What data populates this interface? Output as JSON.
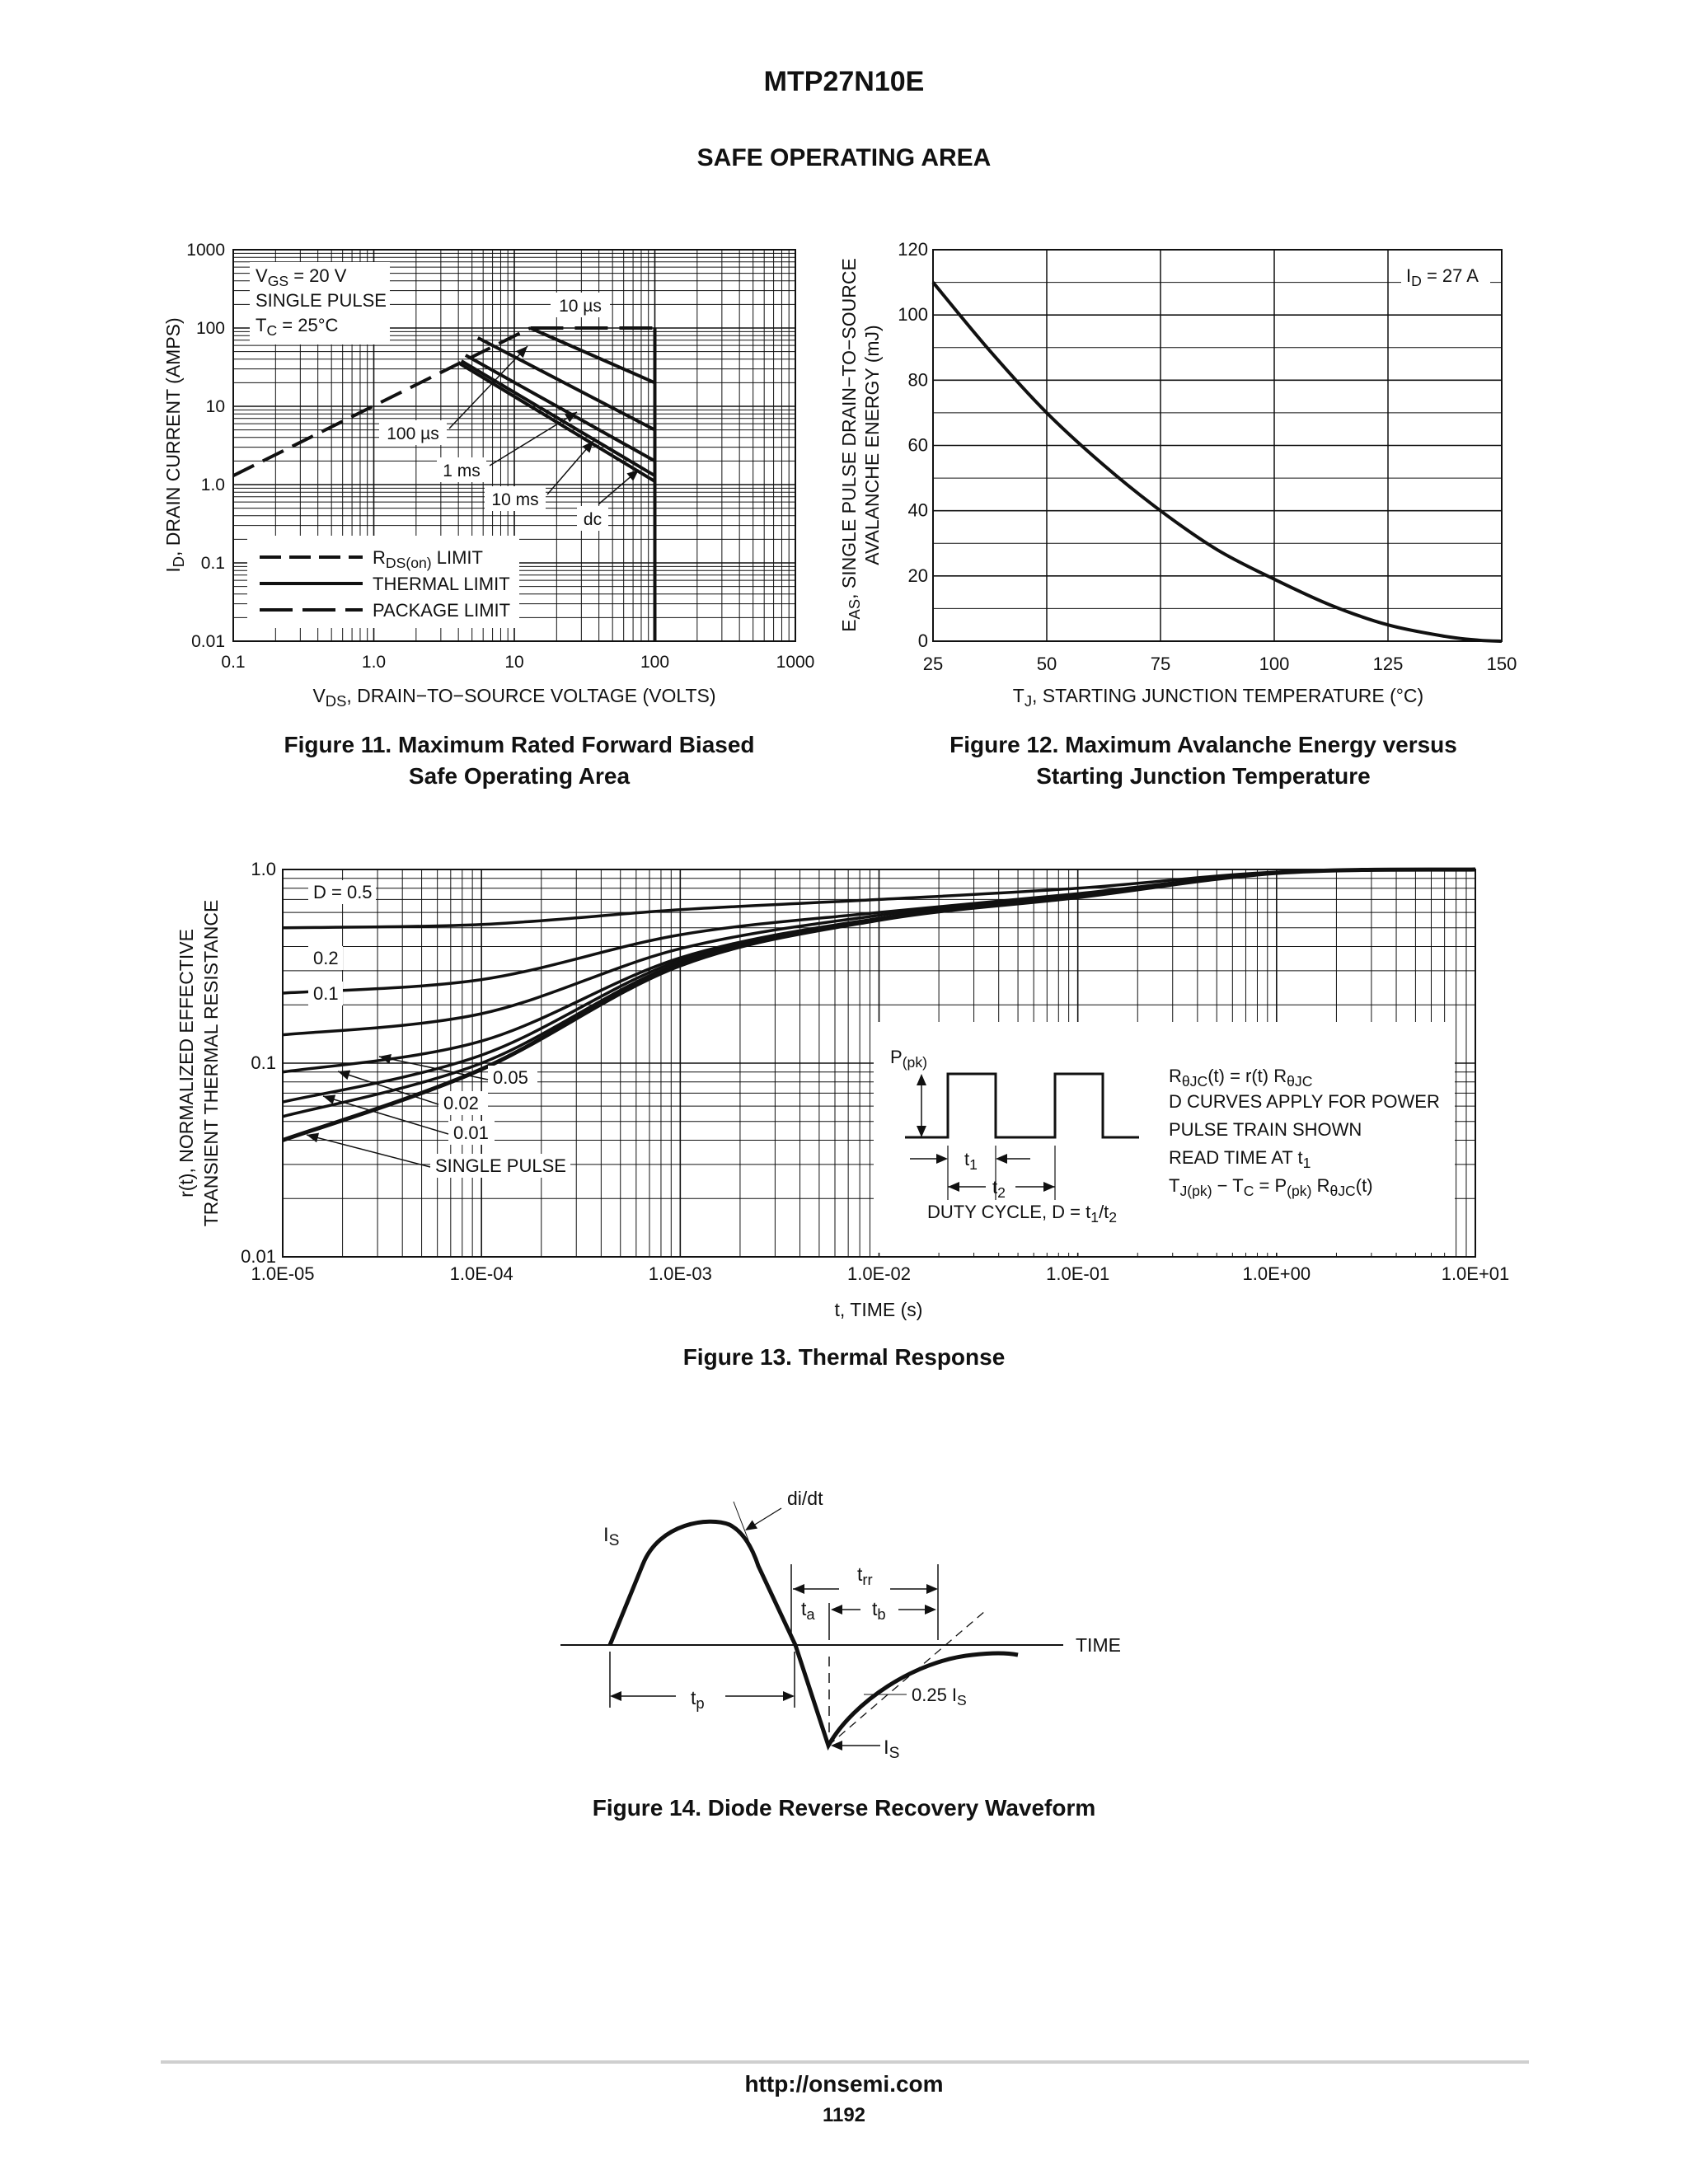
{
  "header": {
    "part_number": "MTP27N10E",
    "section_title": "SAFE OPERATING AREA"
  },
  "footer": {
    "url": "http://onsemi.com",
    "page": "1192"
  },
  "captions": {
    "fig11_line1": "Figure 11. Maximum Rated Forward Biased",
    "fig11_line2": "Safe Operating Area",
    "fig12_line1": "Figure 12. Maximum Avalanche Energy versus",
    "fig12_line2": "Starting Junction Temperature",
    "fig13": "Figure 13. Thermal Response",
    "fig14": "Figure 14. Diode Reverse Recovery Waveform"
  },
  "chart_data": [
    {
      "id": "fig11",
      "type": "line",
      "xscale": "log",
      "yscale": "log",
      "xlim": [
        0.1,
        1000
      ],
      "ylim": [
        0.01,
        1000
      ],
      "xticks": [
        "0.1",
        "1.0",
        "10",
        "100",
        "1000"
      ],
      "yticks": [
        "0.01",
        "0.1",
        "1.0",
        "10",
        "100",
        "1000"
      ],
      "xlabel": "V_DS, DRAIN-TO-SOURCE VOLTAGE (VOLTS)",
      "ylabel": "I_D, DRAIN CURRENT (AMPS)",
      "conditions": [
        "V_GS = 20 V",
        "SINGLE PULSE",
        "T_C = 25°C"
      ],
      "legend": [
        "R_DS(on) LIMIT",
        "THERMAL LIMIT",
        "PACKAGE LIMIT"
      ],
      "series": [
        {
          "name": "R_DS(on) LIMIT",
          "style": "dashed",
          "x": [
            0.1,
            13
          ],
          "y": [
            1.3,
            100
          ]
        },
        {
          "name": "PACKAGE LIMIT",
          "style": "dashed",
          "x": [
            13,
            100
          ],
          "y": [
            100,
            100
          ]
        },
        {
          "name": "10 µs",
          "style": "solid",
          "x": [
            13,
            100
          ],
          "y": [
            100,
            20
          ]
        },
        {
          "name": "100 µs",
          "style": "solid",
          "x": [
            5.5,
            100
          ],
          "y": [
            75,
            5
          ]
        },
        {
          "name": "1 ms",
          "style": "solid",
          "x": [
            4.5,
            100
          ],
          "y": [
            45,
            2
          ]
        },
        {
          "name": "10 ms",
          "style": "solid",
          "x": [
            4.2,
            100
          ],
          "y": [
            38,
            1.3
          ]
        },
        {
          "name": "dc",
          "style": "solid",
          "x": [
            4.0,
            100
          ],
          "y": [
            36,
            1.1
          ]
        },
        {
          "name": "V_DSS limit",
          "style": "solid",
          "x": [
            100,
            100
          ],
          "y": [
            100,
            0.01
          ]
        }
      ],
      "annotations": [
        "10 µs",
        "100 µs",
        "1 ms",
        "10 ms",
        "dc"
      ]
    },
    {
      "id": "fig12",
      "type": "line",
      "xlim": [
        25,
        150
      ],
      "ylim": [
        0,
        120
      ],
      "xticks": [
        "25",
        "50",
        "75",
        "100",
        "125",
        "150"
      ],
      "yticks": [
        "0",
        "20",
        "40",
        "60",
        "80",
        "100",
        "120"
      ],
      "xlabel": "T_J, STARTING JUNCTION TEMPERATURE (°C)",
      "ylabel_line1": "E_AS, SINGLE PULSE DRAIN-TO-SOURCE",
      "ylabel_line2": "AVALANCHE ENERGY (mJ)",
      "annotation": "I_D = 27 A",
      "series": [
        {
          "name": "I_D = 27 A",
          "x": [
            25,
            37.5,
            50,
            62.5,
            75,
            87.5,
            100,
            112.5,
            125,
            137.5,
            145,
            150
          ],
          "y": [
            110,
            89,
            70,
            54,
            40,
            28,
            19,
            11,
            5,
            1.5,
            0.3,
            0
          ]
        }
      ]
    },
    {
      "id": "fig13",
      "type": "line",
      "xscale": "log",
      "yscale": "log",
      "xlim": [
        1e-05,
        10
      ],
      "ylim": [
        0.01,
        1.0
      ],
      "xticks": [
        "1.0E-05",
        "1.0E-04",
        "1.0E-03",
        "1.0E-02",
        "1.0E-01",
        "1.0E+00",
        "1.0E+01"
      ],
      "yticks": [
        "0.01",
        "0.1",
        "1.0"
      ],
      "xlabel": "t, TIME (s)",
      "ylabel_line1": "r(t), NORMALIZED EFFECTIVE",
      "ylabel_line2": "TRANSIENT THERMAL RESISTANCE",
      "series": [
        {
          "name": "D = 0.5",
          "x": [
            1e-05,
            0.0001,
            0.001,
            0.01,
            0.1,
            1,
            10
          ],
          "y": [
            0.5,
            0.52,
            0.62,
            0.7,
            0.8,
            0.97,
            1.0
          ]
        },
        {
          "name": "0.2",
          "x": [
            1e-05,
            0.0001,
            0.001,
            0.01,
            0.1,
            1,
            10
          ],
          "y": [
            0.23,
            0.27,
            0.46,
            0.6,
            0.75,
            0.96,
            1.0
          ]
        },
        {
          "name": "0.1",
          "x": [
            1e-05,
            0.0001,
            0.001,
            0.01,
            0.1,
            1,
            10
          ],
          "y": [
            0.14,
            0.18,
            0.39,
            0.58,
            0.74,
            0.96,
            1.0
          ]
        },
        {
          "name": "0.05",
          "x": [
            1e-05,
            0.0001,
            0.001,
            0.01,
            0.1,
            1,
            10
          ],
          "y": [
            0.09,
            0.13,
            0.35,
            0.56,
            0.73,
            0.96,
            1.0
          ]
        },
        {
          "name": "0.02",
          "x": [
            1e-05,
            0.0001,
            0.001,
            0.01,
            0.1,
            1,
            10
          ],
          "y": [
            0.063,
            0.11,
            0.34,
            0.55,
            0.73,
            0.96,
            1.0
          ]
        },
        {
          "name": "0.01",
          "x": [
            1e-05,
            0.0001,
            0.001,
            0.01,
            0.1,
            1,
            10
          ],
          "y": [
            0.053,
            0.1,
            0.33,
            0.55,
            0.73,
            0.96,
            1.0
          ]
        },
        {
          "name": "SINGLE PULSE",
          "x": [
            1e-05,
            0.0001,
            0.001,
            0.01,
            0.1,
            1,
            10
          ],
          "y": [
            0.04,
            0.093,
            0.32,
            0.55,
            0.72,
            0.96,
            1.0
          ]
        }
      ],
      "labels": [
        "D = 0.5",
        "0.2",
        "0.1",
        "0.05",
        "0.02",
        "0.01",
        "SINGLE PULSE"
      ],
      "inset": {
        "p_pk": "P(pk)",
        "t1": "t1",
        "t2": "t2",
        "duty_cycle": "DUTY CYCLE, D = t1/t2",
        "notes": [
          "RθJC(t) = r(t) RθJC",
          "D CURVES APPLY FOR POWER",
          "PULSE TRAIN SHOWN",
          "READ TIME AT t1",
          "TJ(pk) − TC = P(pk) RθJC(t)"
        ]
      }
    },
    {
      "id": "fig14",
      "type": "diagram",
      "labels": {
        "di_dt": "di/dt",
        "is_top": "IS",
        "trr": "trr",
        "ta": "ta",
        "tb": "tb",
        "time": "TIME",
        "tp": "tp",
        "quarter_is": "0.25 IS",
        "is_bottom": "IS"
      }
    }
  ]
}
